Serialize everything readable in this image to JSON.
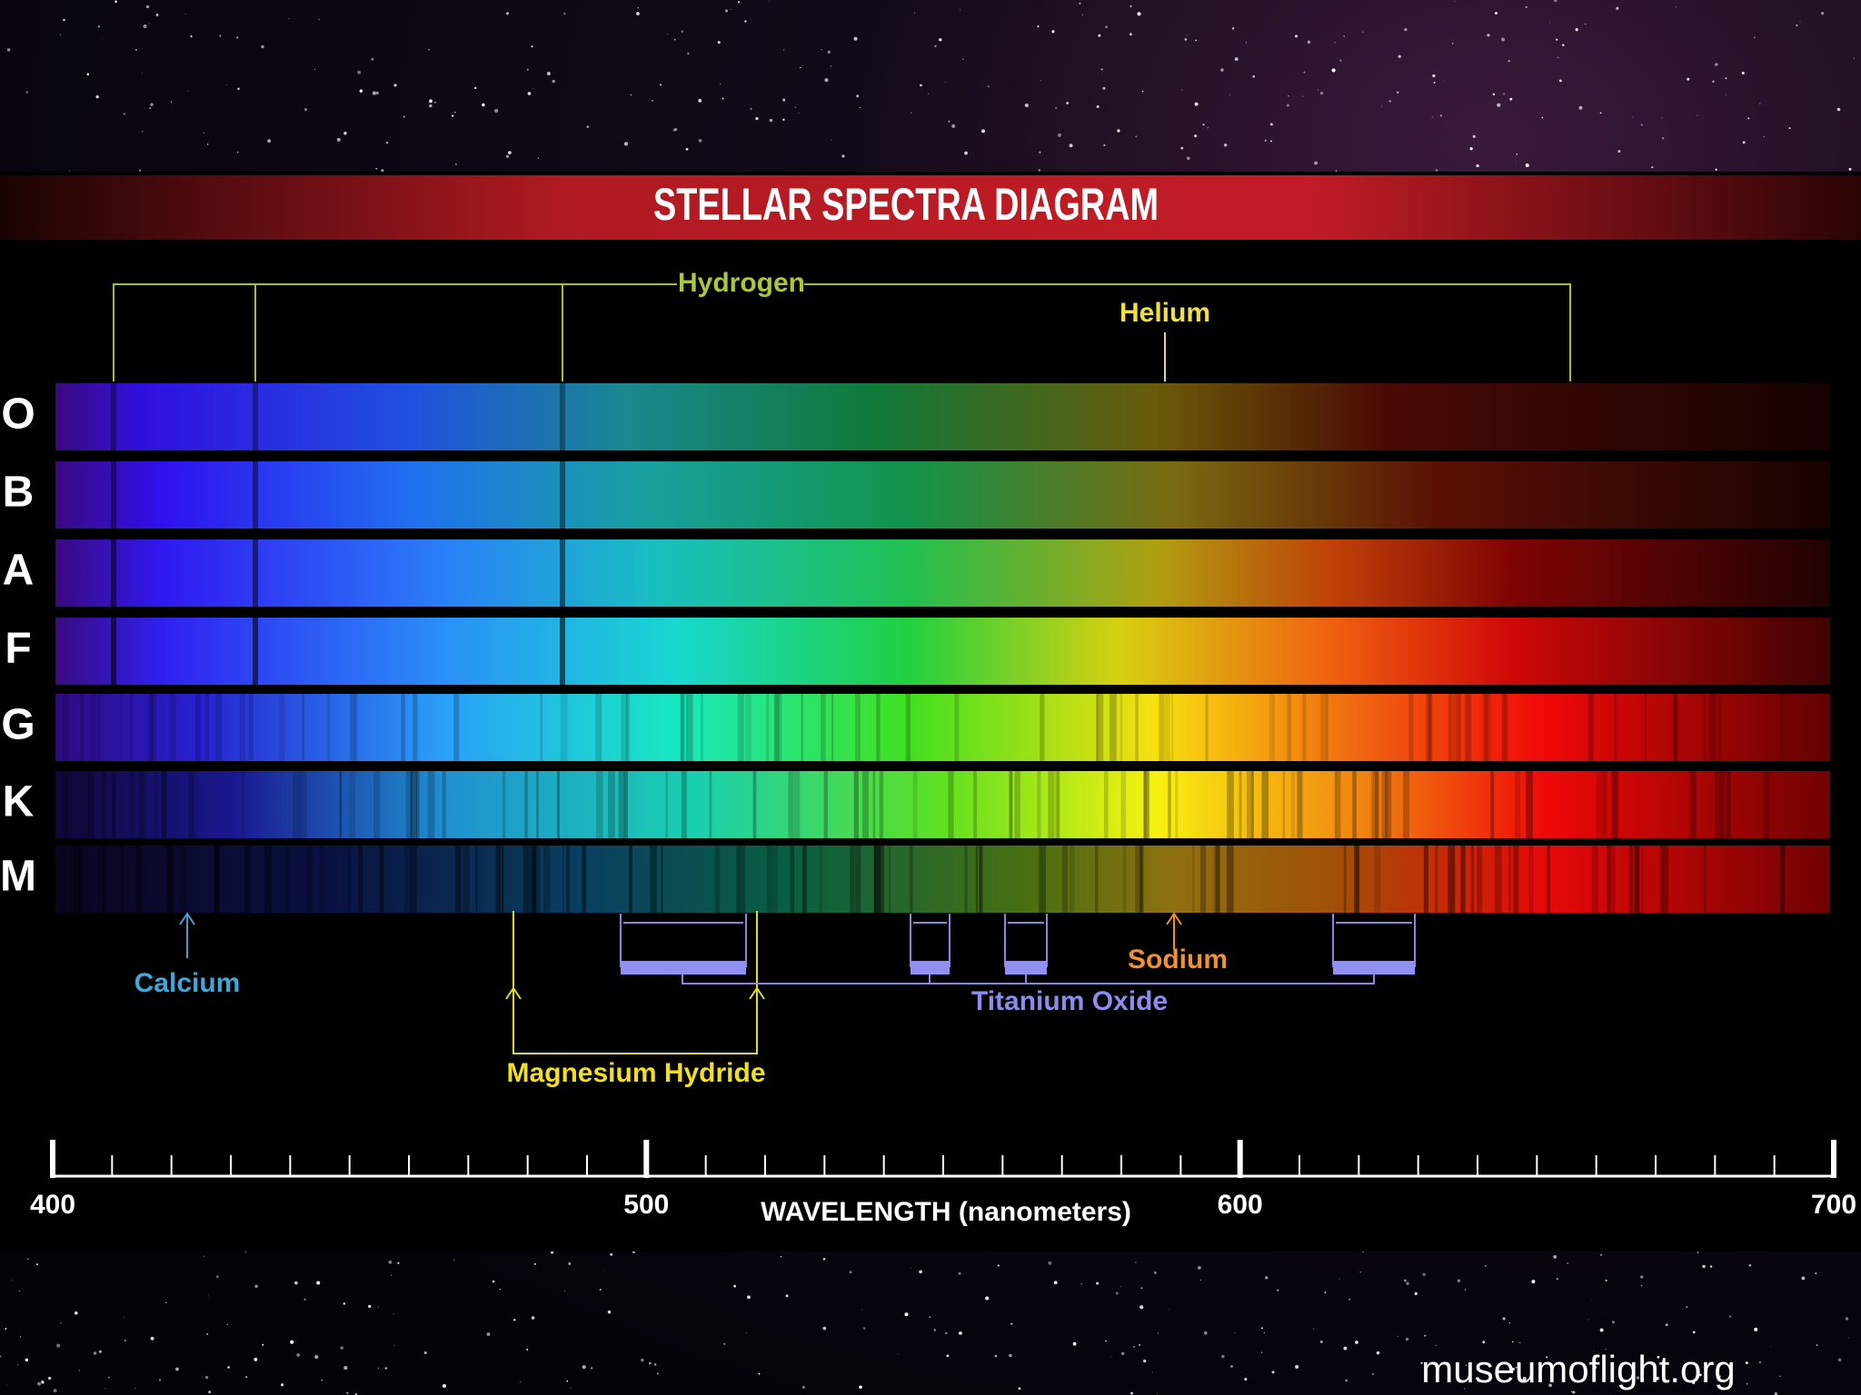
{
  "title": "STELLAR SPECTRA DIAGRAM",
  "spectral_classes": [
    "O",
    "B",
    "A",
    "F",
    "G",
    "K",
    "M"
  ],
  "labels": {
    "hydrogen": "Hydrogen",
    "helium": "Helium",
    "calcium": "Calcium",
    "magnesium_hydride": "Magnesium Hydride",
    "titanium_oxide": "Titanium Oxide",
    "sodium": "Sodium"
  },
  "axis": {
    "ticks": [
      400,
      500,
      600,
      700
    ],
    "label": "WAVELENGTH (nanometers)"
  },
  "credit": "museumoflight.org"
}
